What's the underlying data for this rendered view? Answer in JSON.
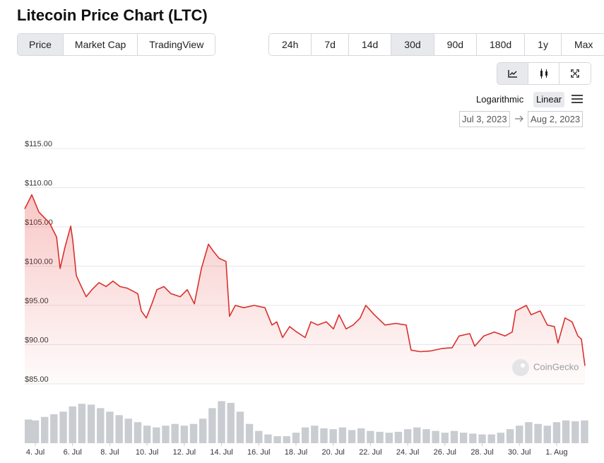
{
  "header": {
    "title": "Litecoin Price Chart (LTC)"
  },
  "tabs": {
    "items": [
      "Price",
      "Market Cap",
      "TradingView"
    ],
    "active": 0
  },
  "ranges": {
    "items": [
      "24h",
      "7d",
      "14d",
      "30d",
      "90d",
      "180d",
      "1y",
      "Max"
    ],
    "active": 3
  },
  "scale": {
    "options": [
      "Logarithmic",
      "Linear"
    ],
    "active": 1
  },
  "date_range": {
    "from": "Jul 3, 2023",
    "to": "Aug 2, 2023"
  },
  "watermark": "CoinGecko",
  "chart_data": [
    {
      "type": "line",
      "color": "#d9302c",
      "grid": true,
      "x": [
        0.43,
        0.81,
        1.19,
        1.76,
        2.14,
        2.33,
        2.59,
        2.9,
        3.01,
        3.2,
        3.47,
        3.73,
        4.04,
        4.42,
        4.8,
        5.17,
        5.55,
        5.93,
        6.5,
        6.69,
        6.96,
        7.26,
        7.53,
        7.91,
        8.28,
        8.78,
        9.16,
        9.54,
        9.92,
        10.3,
        10.56,
        10.87,
        11.24,
        11.43,
        11.74,
        12.19,
        12.76,
        13.33,
        13.71,
        13.97,
        14.28,
        14.66,
        15.04,
        15.49,
        15.8,
        16.17,
        16.63,
        17.01,
        17.31,
        17.69,
        18.07,
        18.45,
        18.75,
        19.21,
        19.78,
        20.35,
        20.92,
        21.18,
        21.68,
        22.25,
        22.82,
        23.39,
        23.76,
        24.33,
        24.6,
        25.09,
        25.66,
        26.23,
        26.61,
        26.8,
        27.37,
        27.63,
        28.12,
        28.5,
        28.88,
        29.07,
        29.45,
        29.83,
        30.14,
        30.33,
        30.52
      ],
      "values": [
        107.3,
        109.1,
        106.9,
        105.5,
        103.7,
        99.7,
        102.4,
        105.1,
        103.3,
        98.8,
        97.4,
        96.1,
        97.0,
        97.9,
        97.4,
        98.1,
        97.4,
        97.2,
        96.5,
        94.3,
        93.4,
        95.2,
        97.0,
        97.4,
        96.5,
        96.1,
        97.0,
        95.2,
        99.7,
        102.8,
        101.9,
        101.0,
        100.6,
        93.6,
        95.0,
        94.7,
        95.0,
        94.7,
        92.5,
        92.9,
        90.9,
        92.3,
        91.6,
        90.9,
        92.9,
        92.5,
        92.9,
        92.0,
        93.8,
        92.0,
        92.5,
        93.4,
        95.0,
        93.8,
        92.5,
        92.7,
        92.5,
        89.3,
        89.1,
        89.2,
        89.5,
        89.6,
        91.1,
        91.4,
        89.8,
        91.1,
        91.6,
        91.1,
        91.6,
        94.3,
        95.0,
        93.8,
        94.3,
        92.5,
        92.3,
        90.2,
        93.4,
        92.9,
        91.1,
        90.7,
        87.3
      ],
      "xlim": [
        0.43,
        30.52
      ],
      "xticks": [
        {
          "value": 1,
          "label": "4. Jul"
        },
        {
          "value": 3,
          "label": "6. Jul"
        },
        {
          "value": 5,
          "label": "8. Jul"
        },
        {
          "value": 7,
          "label": "10. Jul"
        },
        {
          "value": 9,
          "label": "12. Jul"
        },
        {
          "value": 11,
          "label": "14. Jul"
        },
        {
          "value": 13,
          "label": "16. Jul"
        },
        {
          "value": 15,
          "label": "18. Jul"
        },
        {
          "value": 17,
          "label": "20. Jul"
        },
        {
          "value": 19,
          "label": "22. Jul"
        },
        {
          "value": 21,
          "label": "24. Jul"
        },
        {
          "value": 23,
          "label": "26. Jul"
        },
        {
          "value": 25,
          "label": "28. Jul"
        },
        {
          "value": 27,
          "label": "30. Jul"
        },
        {
          "value": 29,
          "label": "1. Aug"
        }
      ],
      "ylim": [
        85,
        115
      ],
      "yticks": [
        {
          "value": 85,
          "label": "$85.00"
        },
        {
          "value": 90,
          "label": "$90.00"
        },
        {
          "value": 95,
          "label": "$95.00"
        },
        {
          "value": 100,
          "label": "$100.00"
        },
        {
          "value": 105,
          "label": "$105.00"
        },
        {
          "value": 110,
          "label": "$110.00"
        },
        {
          "value": 115,
          "label": "$115.00"
        }
      ]
    },
    {
      "type": "bar",
      "color": "#c9ccd1",
      "x": [
        0.5,
        1,
        1.5,
        2,
        2.5,
        3,
        3.5,
        4,
        4.5,
        5,
        5.5,
        6,
        6.5,
        7,
        7.5,
        8,
        8.5,
        9,
        9.5,
        10,
        10.5,
        11,
        11.5,
        12,
        12.5,
        13,
        13.5,
        14,
        14.5,
        15,
        15.5,
        16,
        16.5,
        17,
        17.5,
        18,
        18.5,
        19,
        19.5,
        20,
        20.5,
        21,
        21.5,
        22,
        22.5,
        23,
        23.5,
        24,
        24.5,
        25,
        25.5,
        26,
        26.5,
        27,
        27.5,
        28,
        28.5,
        29,
        29.5,
        30,
        30.5
      ],
      "values": [
        27,
        26,
        30,
        33,
        36,
        42,
        45,
        44,
        40,
        36,
        32,
        28,
        24,
        20,
        18,
        20,
        22,
        20,
        22,
        28,
        40,
        48,
        46,
        36,
        22,
        14,
        10,
        8,
        8,
        12,
        18,
        20,
        17,
        16,
        18,
        15,
        17,
        14,
        13,
        12,
        13,
        16,
        18,
        16,
        14,
        12,
        14,
        12,
        11,
        10,
        10,
        12,
        16,
        20,
        24,
        22,
        20,
        24,
        26,
        25,
        26
      ],
      "xlim": [
        0.43,
        30.52
      ],
      "ylim": [
        0,
        50
      ]
    }
  ]
}
